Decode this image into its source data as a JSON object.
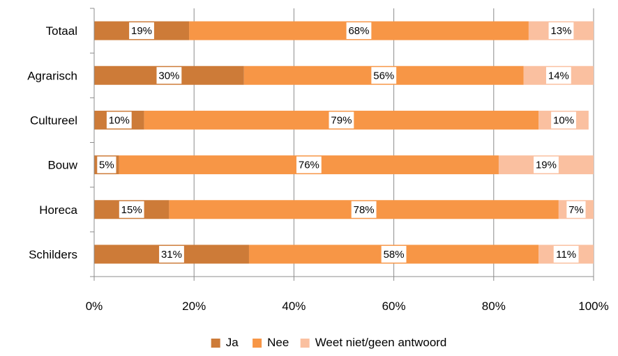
{
  "chart_data": {
    "type": "bar",
    "orientation": "horizontal",
    "stacked": "percent",
    "categories": [
      "Totaal",
      "Agrarisch",
      "Cultureel",
      "Bouw",
      "Horeca",
      "Schilders"
    ],
    "series": [
      {
        "name": "Ja",
        "values": [
          19,
          30,
          10,
          5,
          15,
          31
        ],
        "labels": [
          "19%",
          "30%",
          "10%",
          "5%",
          "15%",
          "31%"
        ],
        "color": "#cd7b38"
      },
      {
        "name": "Nee",
        "values": [
          68,
          56,
          79,
          76,
          78,
          58
        ],
        "labels": [
          "68%",
          "56%",
          "79%",
          "76%",
          "78%",
          "58%"
        ],
        "color": "#f79646"
      },
      {
        "name": "Weet niet/geen antwoord",
        "values": [
          13,
          14,
          10,
          19,
          7,
          11
        ],
        "labels": [
          "13%",
          "14%",
          "10%",
          "19%",
          "7%",
          "11%"
        ],
        "color": "#fac0a0"
      }
    ],
    "x_ticks": [
      "0%",
      "20%",
      "40%",
      "60%",
      "80%",
      "100%"
    ],
    "xlim": [
      0,
      100
    ],
    "grid": "vertical",
    "legend_position": "bottom"
  }
}
